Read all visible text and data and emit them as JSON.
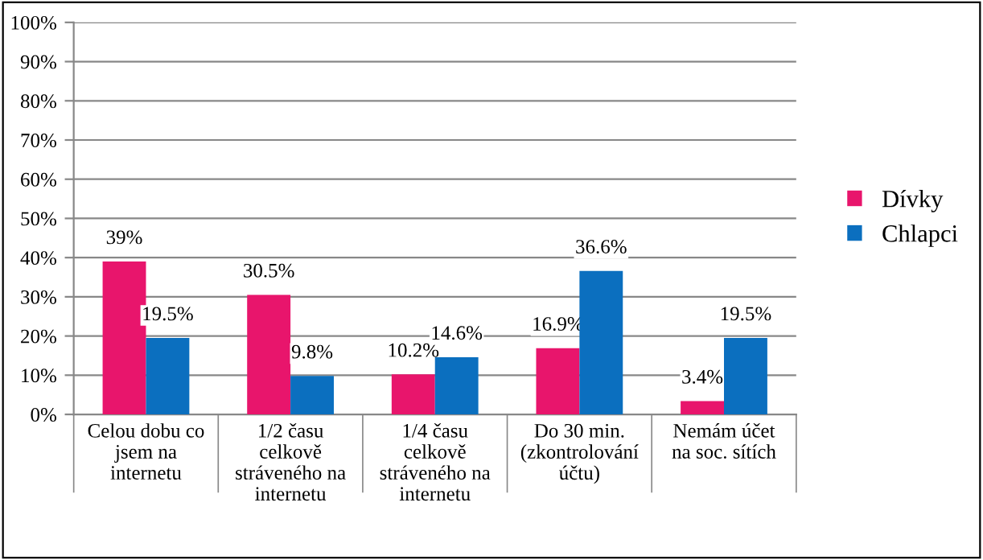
{
  "chart_data": {
    "type": "bar",
    "categories": [
      "Celou dobu co\njsem na\ninternetu",
      "1/2 času\ncelkově\nstráveného na\ninternetu",
      "1/4 času\ncelkově\nstráveného na\ninternetu",
      "Do 30 min.\n(zkontrolování\núčtu)",
      "Nemám účet\nna soc. sítích"
    ],
    "series": [
      {
        "name": "Dívky",
        "color": "#e8156c",
        "values": [
          39,
          30.5,
          10.2,
          16.9,
          3.4
        ],
        "value_labels": [
          "39%",
          "30.5%",
          "10.2%",
          "16.9%",
          "3.4%"
        ]
      },
      {
        "name": "Chlapci",
        "color": "#0b6fbf",
        "values": [
          19.5,
          9.8,
          14.6,
          36.6,
          19.5
        ],
        "value_labels": [
          "19.5%",
          "9.8%",
          "14.6%",
          "36.6%",
          "19.5%"
        ]
      }
    ],
    "ylim": [
      0,
      100
    ],
    "yticks": [
      {
        "value": 0,
        "label": "0%"
      },
      {
        "value": 10,
        "label": "10%"
      },
      {
        "value": 20,
        "label": "20%"
      },
      {
        "value": 30,
        "label": "30%"
      },
      {
        "value": 40,
        "label": "40%"
      },
      {
        "value": 50,
        "label": "50%"
      },
      {
        "value": 60,
        "label": "60%"
      },
      {
        "value": 70,
        "label": "70%"
      },
      {
        "value": 80,
        "label": "80%"
      },
      {
        "value": 90,
        "label": "90%"
      },
      {
        "value": 100,
        "label": "100%"
      }
    ],
    "grid": "y",
    "legend": "right"
  }
}
